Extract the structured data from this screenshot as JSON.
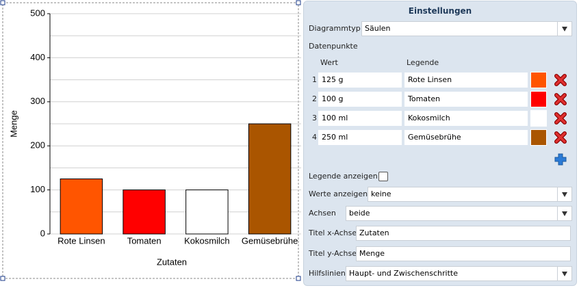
{
  "chart_data": {
    "type": "bar",
    "categories": [
      "Rote Linsen",
      "Tomaten",
      "Kokosmilch",
      "Gemüsebrühe"
    ],
    "values": [
      125,
      100,
      100,
      250
    ],
    "colors": [
      "#ff5500",
      "#ff0000",
      "#ffffff",
      "#aa5500"
    ],
    "xlabel": "Zutaten",
    "ylabel": "Menge",
    "ylim": [
      0,
      500
    ],
    "yticks": [
      0,
      100,
      200,
      300,
      400,
      500
    ],
    "minor_yticks": [
      50,
      150,
      250,
      350,
      450
    ],
    "grid": true,
    "legend": false
  },
  "settings": {
    "title": "Einstellungen",
    "chart_type_label": "Diagrammtyp",
    "chart_type": "Säulen",
    "datapoints_label": "Datenpunkte",
    "value_header": "Wert",
    "legend_header": "Legende",
    "rows": [
      {
        "index": 1,
        "value": "125 g"
      },
      {
        "index": 2,
        "value": "100 g"
      },
      {
        "index": 3,
        "value": "100 ml"
      },
      {
        "index": 4,
        "value": "250 ml"
      }
    ],
    "show_legend_label": "Legende anzeigen",
    "show_values_label": "Werte anzeigen",
    "show_values": "keine",
    "axes_label": "Achsen",
    "axes": "beide",
    "x_title_label": "Titel x-Achse",
    "y_title_label": "Titel y-Achse",
    "gridlines_label": "Hilfslinien",
    "gridlines": "Haupt- und Zwischenschritte"
  }
}
